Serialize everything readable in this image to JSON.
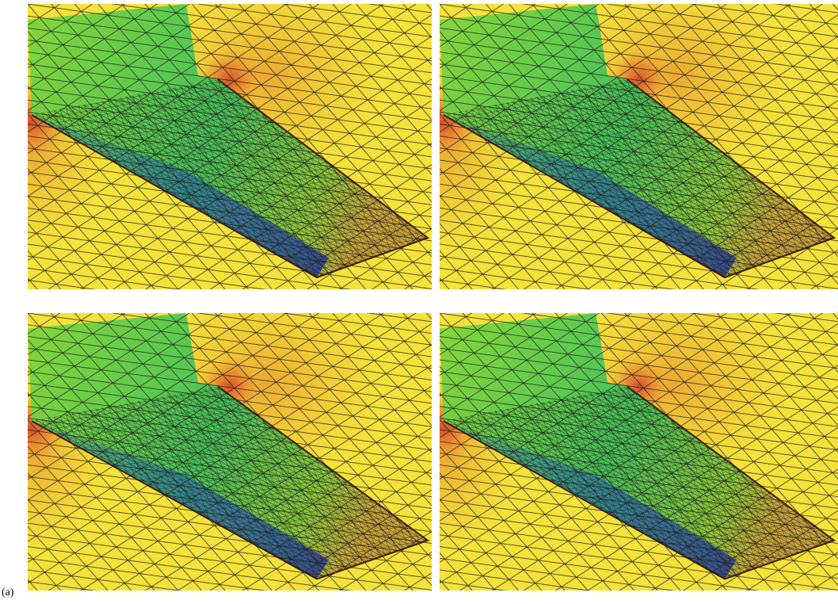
{
  "label": "(a)"
}
